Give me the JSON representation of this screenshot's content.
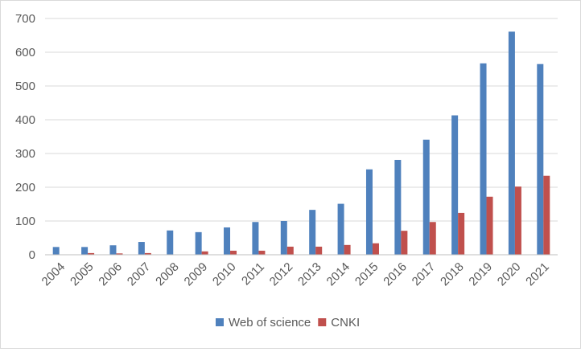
{
  "chart_data": {
    "type": "bar",
    "title": "",
    "xlabel": "",
    "ylabel": "",
    "categories": [
      "2004",
      "2005",
      "2006",
      "2007",
      "2008",
      "2009",
      "2010",
      "2011",
      "2012",
      "2013",
      "2014",
      "2015",
      "2016",
      "2017",
      "2018",
      "2019",
      "2020",
      "2021"
    ],
    "series": [
      {
        "name": "Web of science",
        "color": "#4f81bd",
        "values": [
          23,
          23,
          28,
          38,
          72,
          67,
          81,
          97,
          100,
          133,
          151,
          253,
          281,
          341,
          413,
          567,
          661,
          565
        ]
      },
      {
        "name": "CNKI",
        "color": "#c0504d",
        "values": [
          0,
          5,
          4,
          5,
          0,
          10,
          12,
          12,
          24,
          24,
          29,
          34,
          71,
          97,
          124,
          172,
          202,
          234
        ]
      }
    ],
    "ylim": [
      0,
      700
    ],
    "yticks": [
      0,
      100,
      200,
      300,
      400,
      500,
      600,
      700
    ],
    "grid": true,
    "legend_position": "bottom",
    "colors": {
      "grid": "#d9d9d9",
      "axis": "#bfbfbf",
      "text": "#595959"
    }
  }
}
